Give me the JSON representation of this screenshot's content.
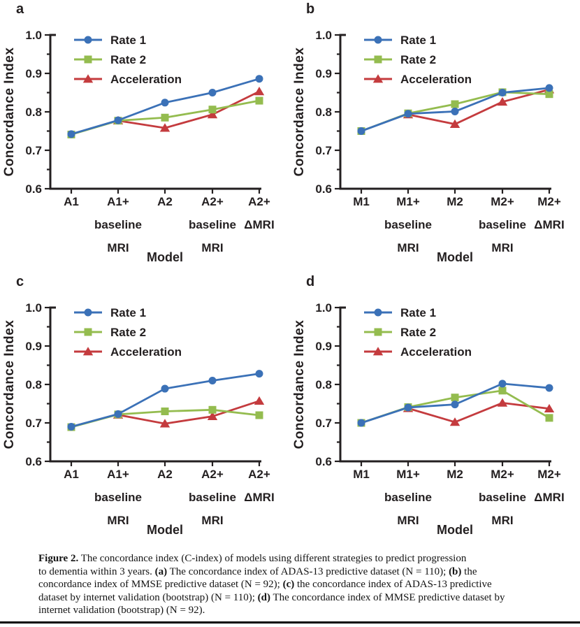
{
  "colors": {
    "rate1": "#3B71B7",
    "rate2": "#94BC4F",
    "acceleration": "#C43B3E",
    "axis": "#231F20",
    "caption_text": "#141414",
    "background": "#FFFFFF"
  },
  "panels": [
    {
      "letter": "a"
    },
    {
      "letter": "b"
    },
    {
      "letter": "c"
    },
    {
      "letter": "d"
    }
  ],
  "chart_data": [
    {
      "type": "line",
      "panel_label": "a",
      "xlabel": "Model",
      "ylabel": "Concordance Index",
      "ylim": [
        0.6,
        1.0
      ],
      "yticks": [
        {
          "label": "1.0",
          "value": 1.0
        },
        {
          "label": "0.9",
          "value": 0.9
        },
        {
          "label": "0.8",
          "value": 0.8
        },
        {
          "label": "0.7",
          "value": 0.7
        },
        {
          "label": "0.6",
          "value": 0.6
        }
      ],
      "yminor": [
        0.95,
        0.85,
        0.75,
        0.65
      ],
      "grid": false,
      "legend_position": "inside-top-left",
      "categories": [
        [
          "A1"
        ],
        [
          "A1+",
          "baseline",
          "MRI"
        ],
        [
          "A2"
        ],
        [
          "A2+",
          "baseline",
          "MRI"
        ],
        [
          "A2+",
          "ΔMRI"
        ]
      ],
      "series": [
        {
          "name": "Rate 1",
          "marker": "circle",
          "color": "#3B71B7",
          "values": [
            0.742,
            0.778,
            0.824,
            0.85,
            0.886
          ]
        },
        {
          "name": "Rate 2",
          "marker": "square",
          "color": "#94BC4F",
          "values": [
            0.741,
            0.777,
            0.785,
            0.806,
            0.829
          ]
        },
        {
          "name": "Acceleration",
          "marker": "triangle",
          "color": "#C43B3E",
          "values": [
            null,
            0.777,
            0.758,
            0.793,
            0.853
          ]
        }
      ]
    },
    {
      "type": "line",
      "panel_label": "b",
      "xlabel": "Model",
      "ylabel": "Concordance Index",
      "ylim": [
        0.6,
        1.0
      ],
      "yticks": [
        {
          "label": "1.0",
          "value": 1.0
        },
        {
          "label": "0.9",
          "value": 0.9
        },
        {
          "label": "0.8",
          "value": 0.8
        },
        {
          "label": "0.7",
          "value": 0.7
        },
        {
          "label": "0.6",
          "value": 0.6
        }
      ],
      "yminor": [
        0.95,
        0.85,
        0.75,
        0.65
      ],
      "grid": false,
      "legend_position": "inside-top-left",
      "categories": [
        [
          "M1"
        ],
        [
          "M1+",
          "baseline",
          "MRI"
        ],
        [
          "M2"
        ],
        [
          "M2+",
          "baseline",
          "MRI"
        ],
        [
          "M2+",
          "ΔMRI"
        ]
      ],
      "series": [
        {
          "name": "Rate 1",
          "marker": "circle",
          "color": "#3B71B7",
          "values": [
            0.75,
            0.795,
            0.801,
            0.85,
            0.862
          ]
        },
        {
          "name": "Rate 2",
          "marker": "square",
          "color": "#94BC4F",
          "values": [
            0.75,
            0.796,
            0.82,
            0.851,
            0.846
          ]
        },
        {
          "name": "Acceleration",
          "marker": "triangle",
          "color": "#C43B3E",
          "values": [
            null,
            0.793,
            0.768,
            0.826,
            0.858
          ]
        }
      ]
    },
    {
      "type": "line",
      "panel_label": "c",
      "xlabel": "Model",
      "ylabel": "Concordance Index",
      "ylim": [
        0.6,
        1.0
      ],
      "yticks": [
        {
          "label": "1.0",
          "value": 1.0
        },
        {
          "label": "0.9",
          "value": 0.9
        },
        {
          "label": "0.8",
          "value": 0.8
        },
        {
          "label": "0.7",
          "value": 0.7
        },
        {
          "label": "0.6",
          "value": 0.6
        }
      ],
      "yminor": [
        0.95,
        0.85,
        0.75,
        0.65
      ],
      "grid": false,
      "legend_position": "inside-top-left",
      "categories": [
        [
          "A1"
        ],
        [
          "A1+",
          "baseline",
          "MRI"
        ],
        [
          "A2"
        ],
        [
          "A2+",
          "baseline",
          "MRI"
        ],
        [
          "A2+",
          "ΔMRI"
        ]
      ],
      "series": [
        {
          "name": "Rate 1",
          "marker": "circle",
          "color": "#3B71B7",
          "values": [
            0.69,
            0.723,
            0.789,
            0.81,
            0.828
          ]
        },
        {
          "name": "Rate 2",
          "marker": "square",
          "color": "#94BC4F",
          "values": [
            0.689,
            0.722,
            0.73,
            0.734,
            0.72
          ]
        },
        {
          "name": "Acceleration",
          "marker": "triangle",
          "color": "#C43B3E",
          "values": [
            null,
            0.721,
            0.698,
            0.717,
            0.757
          ]
        }
      ]
    },
    {
      "type": "line",
      "panel_label": "d",
      "xlabel": "Model",
      "ylabel": "Concordance Index",
      "ylim": [
        0.6,
        1.0
      ],
      "yticks": [
        {
          "label": "1.0",
          "value": 1.0
        },
        {
          "label": "0.9",
          "value": 0.9
        },
        {
          "label": "0.8",
          "value": 0.8
        },
        {
          "label": "0.7",
          "value": 0.7
        },
        {
          "label": "0.6",
          "value": 0.6
        }
      ],
      "yminor": [
        0.95,
        0.85,
        0.75,
        0.65
      ],
      "grid": false,
      "legend_position": "inside-top-left",
      "categories": [
        [
          "M1"
        ],
        [
          "M1+",
          "baseline",
          "MRI"
        ],
        [
          "M2"
        ],
        [
          "M2+",
          "baseline",
          "MRI"
        ],
        [
          "M2+",
          "ΔMRI"
        ]
      ],
      "series": [
        {
          "name": "Rate 1",
          "marker": "circle",
          "color": "#3B71B7",
          "values": [
            0.7,
            0.74,
            0.748,
            0.802,
            0.791
          ]
        },
        {
          "name": "Rate 2",
          "marker": "square",
          "color": "#94BC4F",
          "values": [
            0.7,
            0.741,
            0.766,
            0.784,
            0.713
          ]
        },
        {
          "name": "Acceleration",
          "marker": "triangle",
          "color": "#C43B3E",
          "values": [
            null,
            0.738,
            0.702,
            0.752,
            0.737
          ]
        }
      ]
    }
  ],
  "caption": {
    "lines": [
      [
        {
          "text": "Figure 2.",
          "bold": true
        },
        {
          "text": "  The concordance index (C-index) of models using different strategies to predict progression",
          "bold": false
        }
      ],
      [
        {
          "text": "to dementia within 3 years. ",
          "bold": false
        },
        {
          "text": "(a)",
          "bold": true
        },
        {
          "text": " The concordance index of ADAS-13 predictive dataset (N = 110); ",
          "bold": false
        },
        {
          "text": "(b)",
          "bold": true
        },
        {
          "text": " the",
          "bold": false
        }
      ],
      [
        {
          "text": "concordance index of MMSE predictive dataset (N = 92); ",
          "bold": false
        },
        {
          "text": "(c)",
          "bold": true
        },
        {
          "text": " the concordance index of ADAS-13 predictive",
          "bold": false
        }
      ],
      [
        {
          "text": "dataset by internet validation (bootstrap) (N = 110); ",
          "bold": false
        },
        {
          "text": "(d)",
          "bold": true
        },
        {
          "text": " The concordance index of MMSE predictive dataset by",
          "bold": false
        }
      ],
      [
        {
          "text": "internet validation (bootstrap) (N = 92).",
          "bold": false
        }
      ]
    ]
  }
}
